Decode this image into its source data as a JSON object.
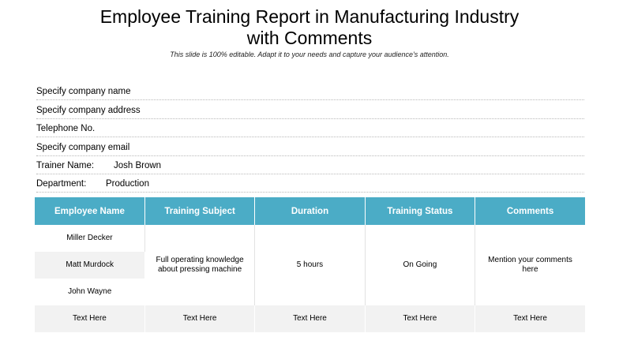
{
  "header": {
    "title_line1": "Employee Training Report in Manufacturing Industry",
    "title_line2": "with Comments",
    "subtitle": "This slide is 100% editable. Adapt it to your needs and capture your audience's attention."
  },
  "info": {
    "company_name": "Specify company name",
    "company_address": "Specify company address",
    "telephone": "Telephone No.",
    "company_email": "Specify company email",
    "trainer_label": "Trainer Name:",
    "trainer_value": "Josh Brown",
    "department_label": "Department:",
    "department_value": "Production"
  },
  "table": {
    "columns": [
      "Employee Name",
      "Training Subject",
      "Duration",
      "Training Status",
      "Comments"
    ],
    "employees": [
      "Miller Decker",
      "Matt Murdock",
      "John Wayne"
    ],
    "training_subject": "Full operating knowledge about pressing machine",
    "duration": "5 hours",
    "training_status": "On Going",
    "comments": "Mention your comments here",
    "footer": [
      "Text Here",
      "Text Here",
      "Text Here",
      "Text Here",
      "Text Here"
    ]
  },
  "colors": {
    "header_bg": "#4bacc6",
    "header_text": "#ffffff",
    "alt_row": "#f2f2f2"
  }
}
